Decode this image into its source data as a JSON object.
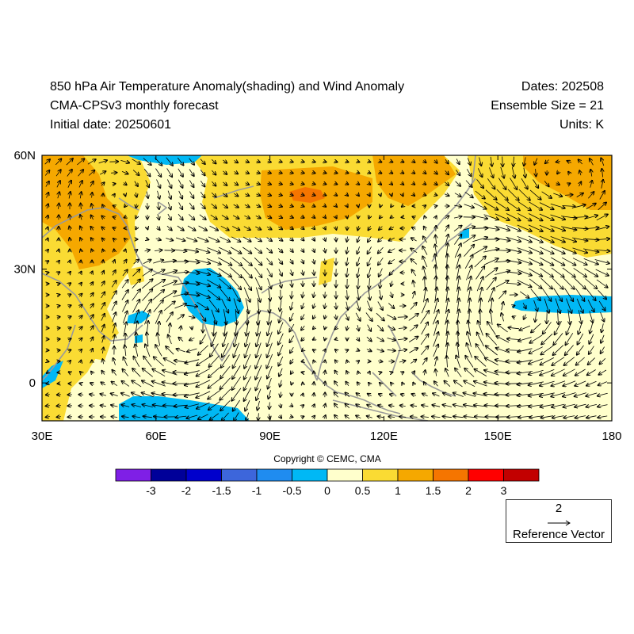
{
  "header": {
    "title": "850 hPa Air Temperature Anomaly(shading) and Wind Anomaly",
    "subtitle": "CMA-CPSv3 monthly forecast",
    "initial_date": "Initial date: 20250601",
    "dates": "Dates: 202508",
    "ensemble": "Ensemble Size = 21",
    "units": "Units: K"
  },
  "map": {
    "lon_range": [
      30,
      180
    ],
    "lat_range": [
      -10,
      60
    ],
    "lon_ticks": [
      "30E",
      "60E",
      "90E",
      "120E",
      "150E",
      "180"
    ],
    "lat_ticks": [
      "60N",
      "30N",
      "0"
    ],
    "lat_tick_values": [
      60,
      30,
      0
    ],
    "lon_tick_values": [
      30,
      60,
      90,
      120,
      150,
      180
    ]
  },
  "copyright": "Copyright © CEMC, CMA",
  "colorbar": {
    "colors": [
      "#7f1fe6",
      "#000099",
      "#0000cc",
      "#3d66db",
      "#1f8cf0",
      "#00b8f5",
      "#ffffcc",
      "#fadb33",
      "#f5a800",
      "#f57500",
      "#ff0000",
      "#c20000"
    ],
    "labels": [
      "-3",
      "-2",
      "-1.5",
      "-1",
      "-0.5",
      "0",
      "0.5",
      "1",
      "1.5",
      "2",
      "3"
    ]
  },
  "reference_vector": {
    "magnitude": "2",
    "label": "Reference Vector"
  },
  "colors": {
    "background": "#ffffcc",
    "land_outline": "#9a9a9a"
  }
}
